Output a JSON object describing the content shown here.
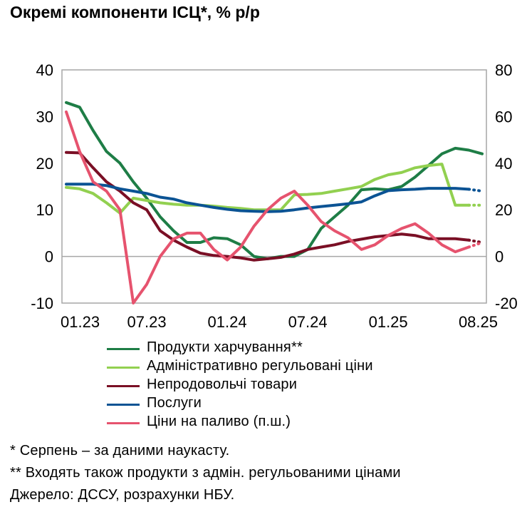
{
  "title": "Окремі компоненти ІСЦ*, % р/р",
  "chart_data": {
    "type": "line",
    "x_labels": [
      "01.23",
      "07.23",
      "01.24",
      "07.24",
      "01.25",
      "08.25"
    ],
    "x_label_index": [
      0,
      6,
      12,
      18,
      24,
      31
    ],
    "n_points": 32,
    "y_left": {
      "min": -10,
      "max": 40,
      "ticks": [
        -10,
        0,
        10,
        20,
        30,
        40
      ]
    },
    "y_right": {
      "min": -20,
      "max": 80,
      "ticks": [
        -20,
        0,
        20,
        40,
        60,
        80
      ]
    },
    "series": [
      {
        "name": "Продукти харчування**",
        "color": "#1e7d46",
        "axis": "left",
        "dotted_from": 31,
        "values": [
          33,
          32,
          27,
          22.5,
          20,
          16,
          12.5,
          8.5,
          5.5,
          3,
          3,
          4,
          3.8,
          2.5,
          0,
          -0.5,
          0,
          0,
          1.5,
          6,
          8.5,
          11,
          14.3,
          14.5,
          14.3,
          15,
          17,
          19.5,
          22,
          23.2,
          22.8,
          22
        ]
      },
      {
        "name": "Адміністративно регульовані ціни",
        "color": "#92d050",
        "axis": "left",
        "dotted_from": 30,
        "values": [
          14.8,
          14.5,
          13.5,
          11.5,
          9.3,
          12.5,
          12,
          11.5,
          11.2,
          11,
          11,
          10.8,
          10.5,
          10.3,
          10,
          10,
          10,
          13.2,
          13.3,
          13.5,
          14,
          14.5,
          15,
          16.5,
          17.5,
          18,
          19,
          19.5,
          19.8,
          11,
          11,
          11
        ]
      },
      {
        "name": "Непродовольчі товари",
        "color": "#7a0f25",
        "axis": "left",
        "dotted_from": 30,
        "values": [
          22.3,
          22.2,
          19,
          16,
          14,
          11.5,
          10,
          5.5,
          3.5,
          2,
          0.7,
          0.2,
          0,
          -0.3,
          -0.8,
          -0.5,
          -0.2,
          0.5,
          1.5,
          2,
          2.5,
          3.2,
          3.7,
          4.2,
          4.5,
          4.8,
          4.5,
          3.8,
          3.8,
          3.8,
          3.5,
          3
        ]
      },
      {
        "name": "Послуги",
        "color": "#0b5394",
        "axis": "left",
        "dotted_from": 30,
        "values": [
          15.5,
          15.5,
          15.5,
          15.2,
          14.5,
          14,
          13.5,
          12.7,
          12.3,
          11.5,
          11,
          10.5,
          10.1,
          9.8,
          9.7,
          9.6,
          9.7,
          10,
          10.4,
          10.7,
          11,
          11.3,
          11.7,
          13,
          14.1,
          14.3,
          14.4,
          14.6,
          14.6,
          14.6,
          14.4,
          14
        ]
      },
      {
        "name": "Ціни на паливо (п.ш.)",
        "color": "#e6536e",
        "axis": "right",
        "dotted_from": 30,
        "values": [
          62,
          45,
          32,
          28,
          20,
          -20,
          -12,
          0,
          7.5,
          10,
          10,
          3,
          -1.5,
          4,
          13,
          20,
          25,
          28,
          22,
          15,
          11,
          8,
          3,
          5,
          9,
          12,
          14,
          10,
          5,
          2,
          4,
          6
        ]
      }
    ]
  },
  "notes": [
    "* Серпень – за даними наукасту.",
    "** Входять також продукти з адмін. регульованими цінами",
    "Джерело: ДССУ, розрахунки НБУ."
  ]
}
